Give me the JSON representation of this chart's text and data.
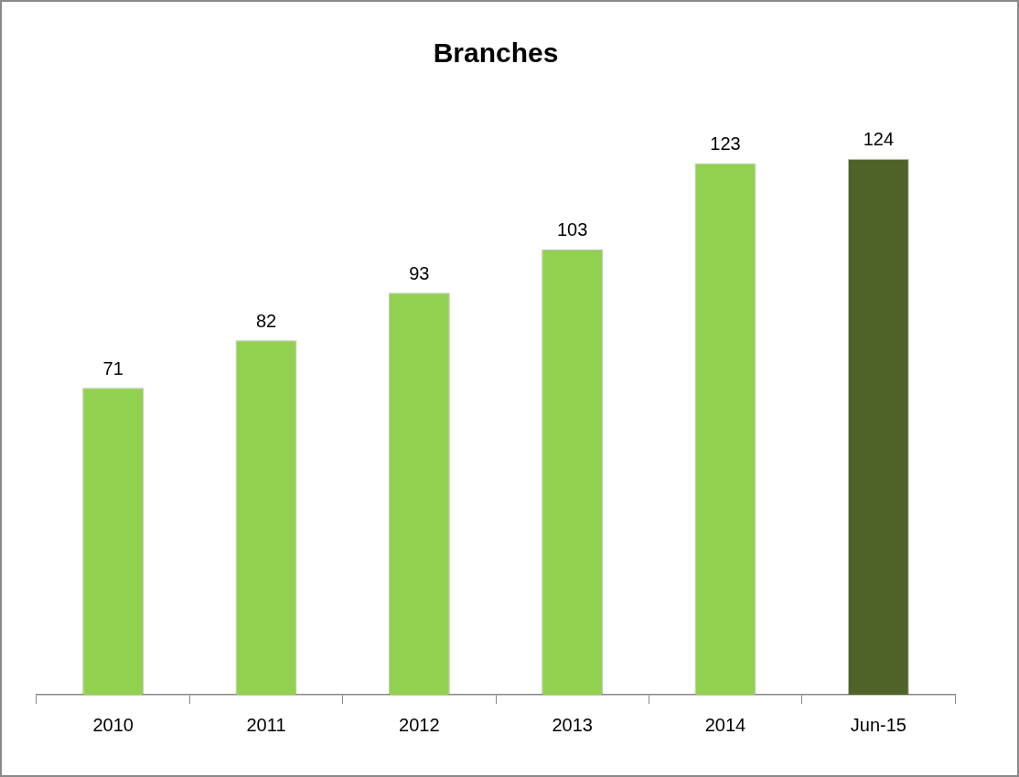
{
  "chart_data": {
    "type": "bar",
    "title": "Branches",
    "categories": [
      "2010",
      "2011",
      "2012",
      "2013",
      "2014",
      "Jun-15"
    ],
    "values": [
      71,
      82,
      93,
      103,
      123,
      124
    ],
    "colors": [
      "#92d050",
      "#92d050",
      "#92d050",
      "#92d050",
      "#92d050",
      "#4f6228"
    ],
    "data_labels": true,
    "grid": false,
    "legend": false
  }
}
